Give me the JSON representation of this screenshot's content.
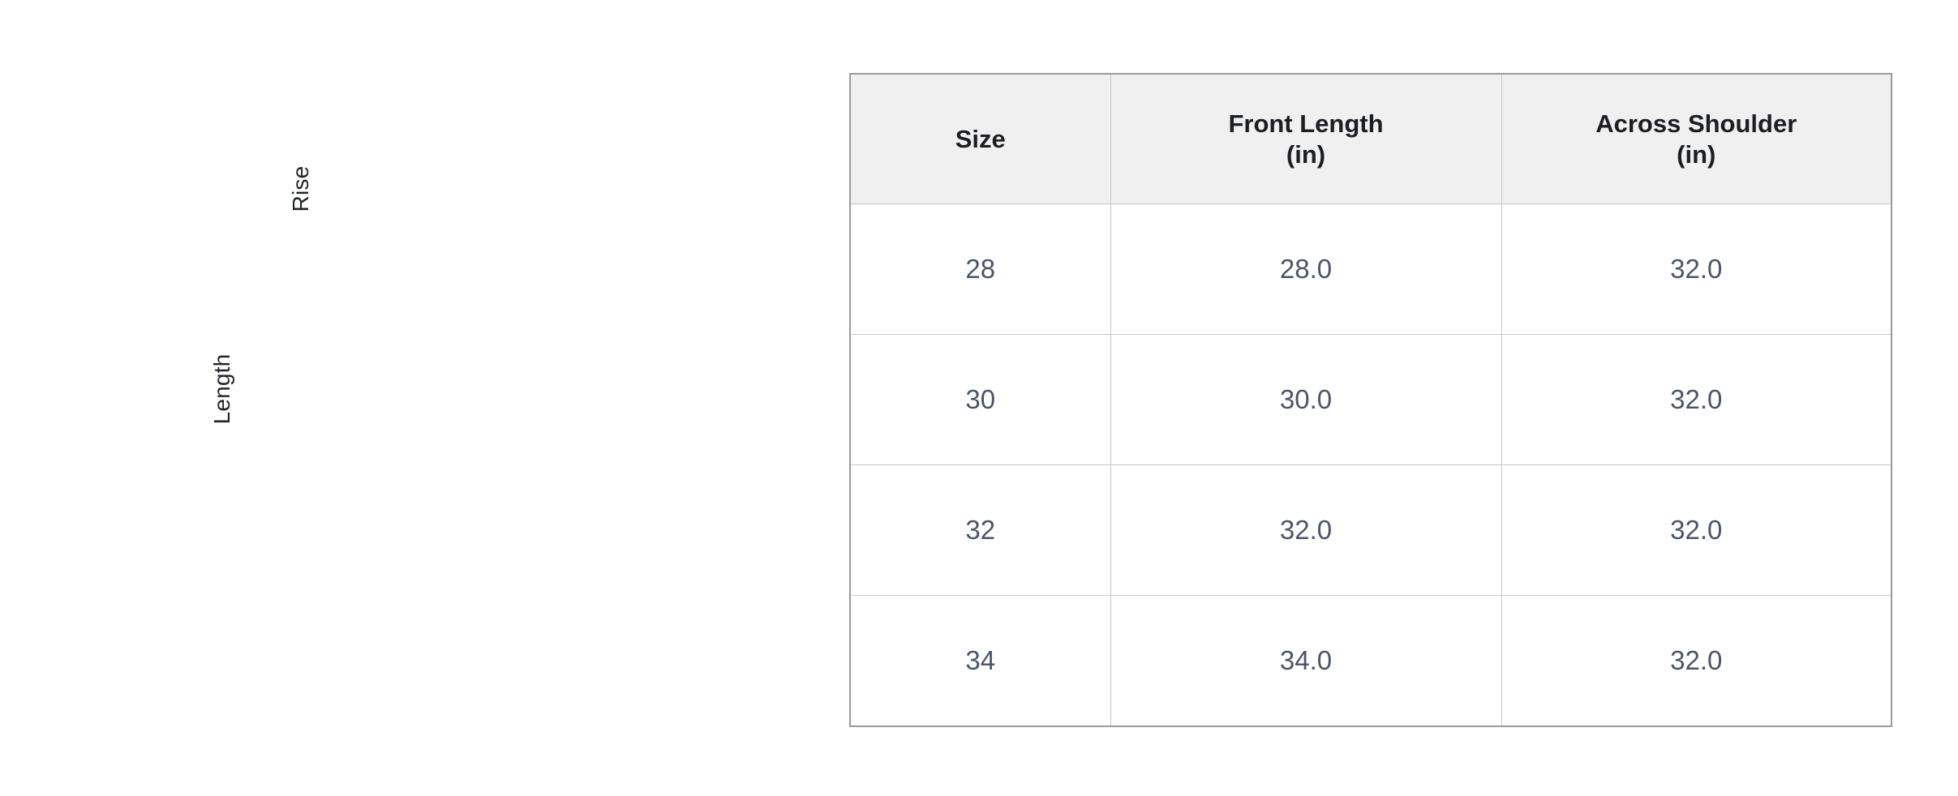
{
  "diagram": {
    "labels": {
      "rise": "Rise",
      "length": "Length"
    }
  },
  "size_table": {
    "headers": [
      {
        "line1": "Size",
        "line2": ""
      },
      {
        "line1": "Front Length",
        "line2": "(in)"
      },
      {
        "line1": "Across Shoulder",
        "line2": "(in)"
      }
    ],
    "rows": [
      [
        "28",
        "28.0",
        "32.0"
      ],
      [
        "30",
        "30.0",
        "32.0"
      ],
      [
        "32",
        "32.0",
        "32.0"
      ],
      [
        "34",
        "34.0",
        "32.0"
      ]
    ]
  }
}
